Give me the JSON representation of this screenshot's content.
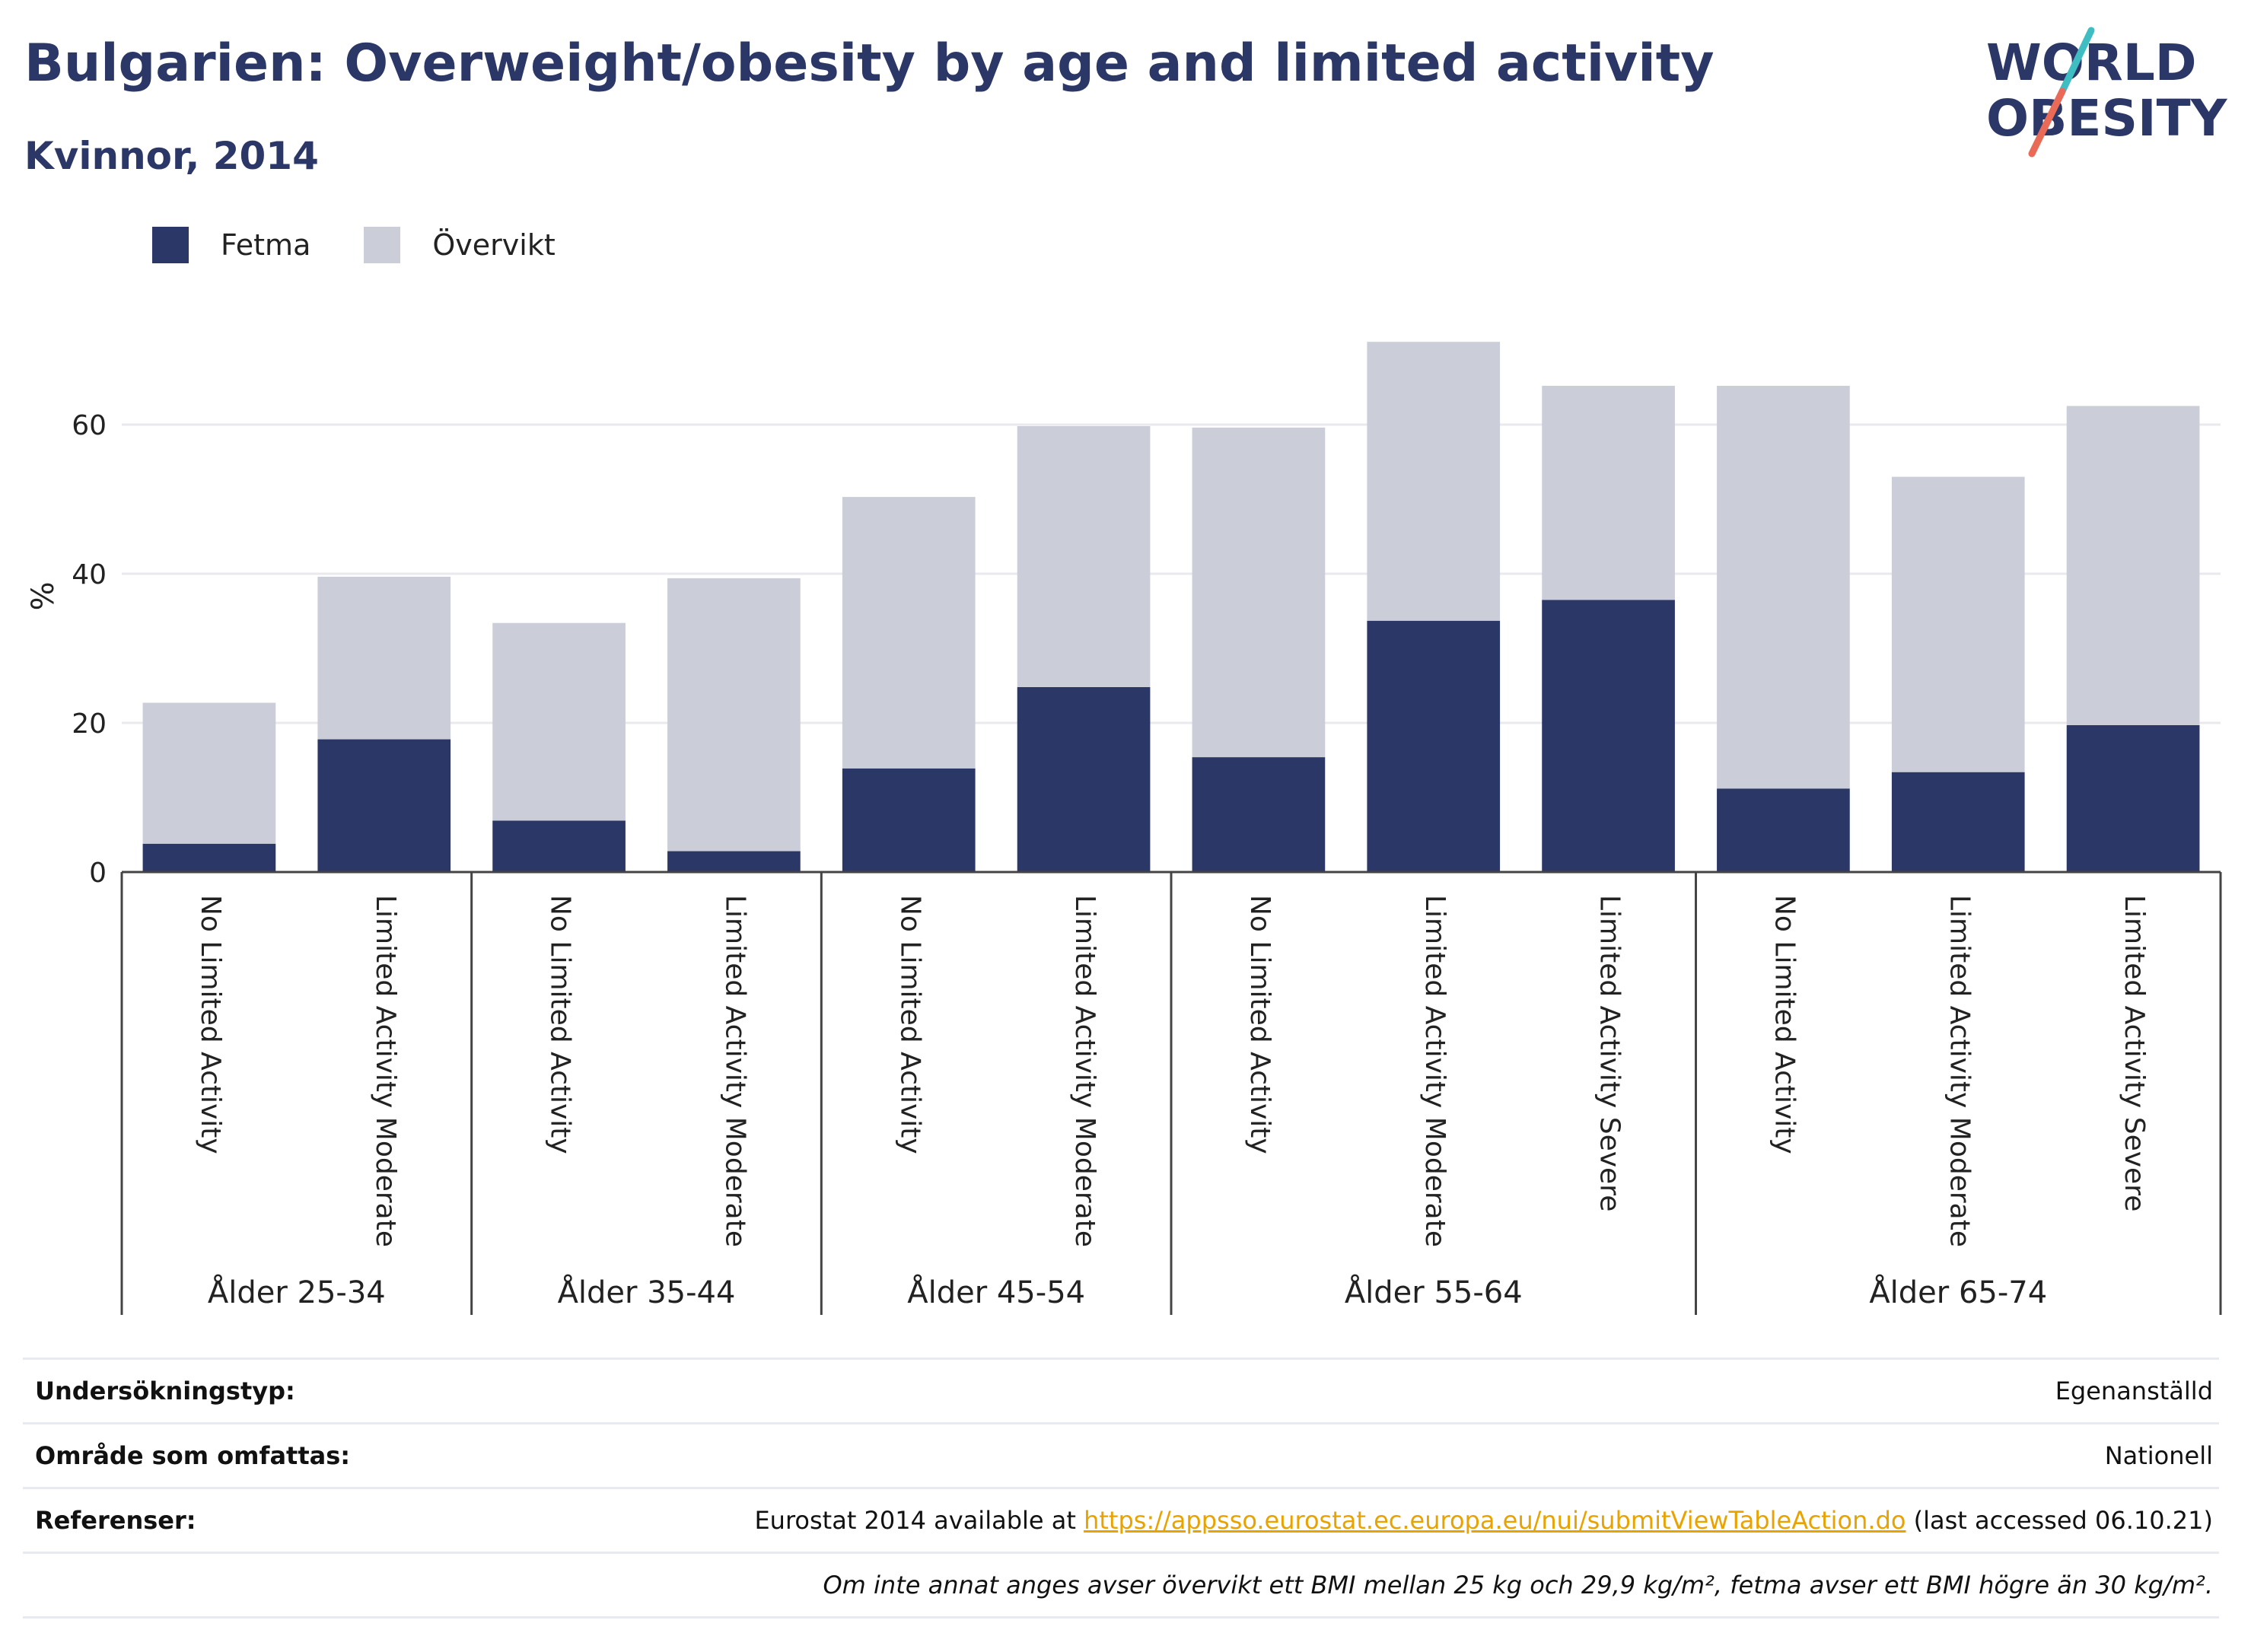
{
  "header": {
    "title": "Bulgarien: Overweight/obesity by age and limited activity",
    "subtitle": "Kvinnor, 2014"
  },
  "logo": {
    "line1": "WORLD",
    "line2": "OBESITY"
  },
  "legend": [
    {
      "name": "Fetma",
      "color": "#2b3766"
    },
    {
      "name": "Övervikt",
      "color": "#cbcdd9"
    }
  ],
  "chart_data": {
    "type": "bar",
    "stacked": true,
    "ylabel": "%",
    "ylim": [
      0,
      75
    ],
    "yticks": [
      0,
      20,
      40,
      60
    ],
    "grid": true,
    "legend_position": "top-left",
    "categories": [
      "No Limited Activity",
      "Limited Activity Moderate",
      "No Limited Activity",
      "Limited Activity Moderate",
      "No Limited Activity",
      "Limited Activity Moderate",
      "No Limited Activity",
      "Limited Activity Moderate",
      "Limited Activity Severe",
      "No Limited Activity",
      "Limited Activity Moderate",
      "Limited Activity Severe"
    ],
    "groups": [
      {
        "label": "Ålder 25-34",
        "count": 2
      },
      {
        "label": "Ålder 35-44",
        "count": 2
      },
      {
        "label": "Ålder 45-54",
        "count": 2
      },
      {
        "label": "Ålder 55-64",
        "count": 3
      },
      {
        "label": "Ålder 65-74",
        "count": 3
      }
    ],
    "series": [
      {
        "name": "Fetma",
        "color": "#2b3766",
        "values": [
          3.8,
          17.8,
          6.9,
          2.8,
          13.9,
          24.8,
          15.4,
          33.7,
          36.5,
          11.2,
          13.4,
          19.7
        ]
      },
      {
        "name": "Övervikt",
        "color": "#cbcdd9",
        "values": [
          18.9,
          21.8,
          26.5,
          36.6,
          36.4,
          35.0,
          44.2,
          37.4,
          28.7,
          54.0,
          39.6,
          42.8
        ]
      }
    ]
  },
  "info": {
    "survey_label": "Undersökningstyp:",
    "survey_value": "Egenanställd",
    "area_label": "Område som omfattas:",
    "area_value": "Nationell",
    "ref_label": "Referenser:",
    "ref_prefix": "Eurostat 2014 available at ",
    "ref_link": "https://appsso.eurostat.ec.europa.eu/nui/submitViewTableAction.do",
    "ref_suffix": " (last accessed 06.10.21)",
    "note": "Om inte annat anges avser övervikt ett BMI mellan 25 kg och 29,9 kg/m², fetma avser ett BMI högre än 30 kg/m²."
  }
}
